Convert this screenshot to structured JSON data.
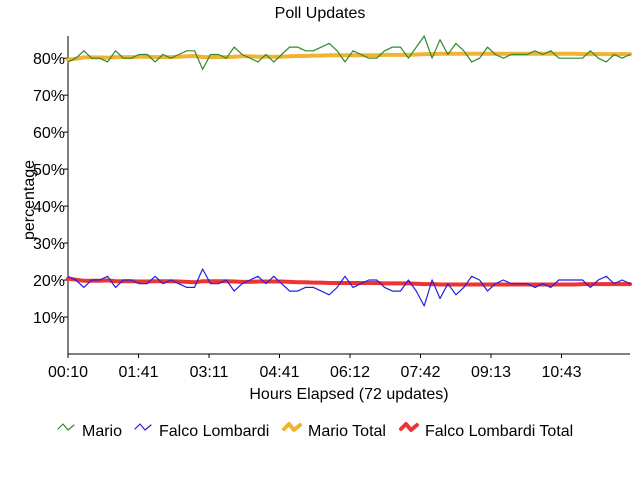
{
  "chart_data": {
    "type": "line",
    "title": "Poll Updates",
    "xlabel": "Hours Elapsed (72 updates)",
    "ylabel": "percentage",
    "x_tick_labels": [
      "00:10",
      "01:41",
      "03:11",
      "04:41",
      "06:12",
      "07:42",
      "09:13",
      "10:43"
    ],
    "y_tick_labels": [
      "10%",
      "20%",
      "30%",
      "40%",
      "50%",
      "60%",
      "70%",
      "80%"
    ],
    "y_ticks": [
      10,
      20,
      30,
      40,
      50,
      60,
      70,
      80
    ],
    "ylim": [
      0,
      86
    ],
    "update_count": 72,
    "grid": false,
    "legend_position": "bottom",
    "series": [
      {
        "name": "Mario",
        "color": "#2e8b2e",
        "values": [
          79,
          80,
          82,
          80,
          80,
          79,
          82,
          80,
          80,
          81,
          81,
          79,
          81,
          80,
          81,
          82,
          82,
          77,
          81,
          81,
          80,
          83,
          81,
          80,
          79,
          81,
          79,
          81,
          83,
          83,
          82,
          82,
          83,
          84,
          82,
          79,
          82,
          81,
          80,
          80,
          82,
          83,
          83,
          80,
          83,
          86,
          80,
          85,
          81,
          84,
          82,
          79,
          80,
          83,
          81,
          80,
          81,
          81,
          81,
          82,
          81,
          82,
          80,
          80,
          80,
          80,
          82,
          80,
          79,
          81,
          80,
          81
        ]
      },
      {
        "name": "Falco Lombardi",
        "color": "#2222dd",
        "values": [
          21,
          20,
          18,
          20,
          20,
          21,
          18,
          20,
          20,
          19,
          19,
          21,
          19,
          20,
          19,
          18,
          18,
          23,
          19,
          19,
          20,
          17,
          19,
          20,
          21,
          19,
          21,
          19,
          17,
          17,
          18,
          18,
          17,
          16,
          18,
          21,
          18,
          19,
          20,
          20,
          18,
          17,
          17,
          20,
          17,
          13,
          20,
          15,
          19,
          16,
          18,
          21,
          20,
          17,
          19,
          20,
          19,
          19,
          19,
          18,
          19,
          18,
          20,
          20,
          20,
          20,
          18,
          20,
          21,
          19,
          20,
          19
        ]
      },
      {
        "name": "Mario Total",
        "color": "#f2b233",
        "values": [
          79.6,
          79.9,
          80.2,
          80.2,
          80.2,
          80.1,
          80.3,
          80.3,
          80.3,
          80.4,
          80.4,
          80.3,
          80.3,
          80.3,
          80.4,
          80.5,
          80.6,
          80.3,
          80.3,
          80.3,
          80.3,
          80.4,
          80.5,
          80.5,
          80.4,
          80.4,
          80.4,
          80.4,
          80.5,
          80.6,
          80.6,
          80.7,
          80.7,
          80.8,
          80.8,
          80.8,
          80.8,
          80.8,
          80.8,
          80.8,
          80.9,
          80.9,
          80.9,
          80.9,
          81.0,
          81.1,
          81.1,
          81.2,
          81.2,
          81.2,
          81.2,
          81.2,
          81.2,
          81.2,
          81.2,
          81.2,
          81.2,
          81.2,
          81.2,
          81.2,
          81.2,
          81.2,
          81.2,
          81.2,
          81.2,
          81.1,
          81.1,
          81.1,
          81.1,
          81.1,
          81.1,
          81.1
        ]
      },
      {
        "name": "Falco Lombardi Total",
        "color": "#ee3333",
        "values": [
          20.4,
          20.1,
          19.8,
          19.8,
          19.8,
          19.9,
          19.7,
          19.7,
          19.7,
          19.6,
          19.6,
          19.7,
          19.7,
          19.7,
          19.6,
          19.5,
          19.4,
          19.7,
          19.7,
          19.7,
          19.7,
          19.6,
          19.5,
          19.5,
          19.6,
          19.6,
          19.6,
          19.6,
          19.5,
          19.4,
          19.4,
          19.3,
          19.3,
          19.2,
          19.2,
          19.2,
          19.2,
          19.2,
          19.2,
          19.2,
          19.1,
          19.1,
          19.1,
          19.1,
          19.0,
          18.9,
          18.9,
          18.8,
          18.8,
          18.8,
          18.8,
          18.8,
          18.8,
          18.8,
          18.8,
          18.8,
          18.8,
          18.8,
          18.8,
          18.8,
          18.8,
          18.8,
          18.8,
          18.8,
          18.8,
          18.9,
          18.9,
          18.9,
          18.9,
          18.9,
          18.9,
          18.9
        ]
      }
    ]
  }
}
